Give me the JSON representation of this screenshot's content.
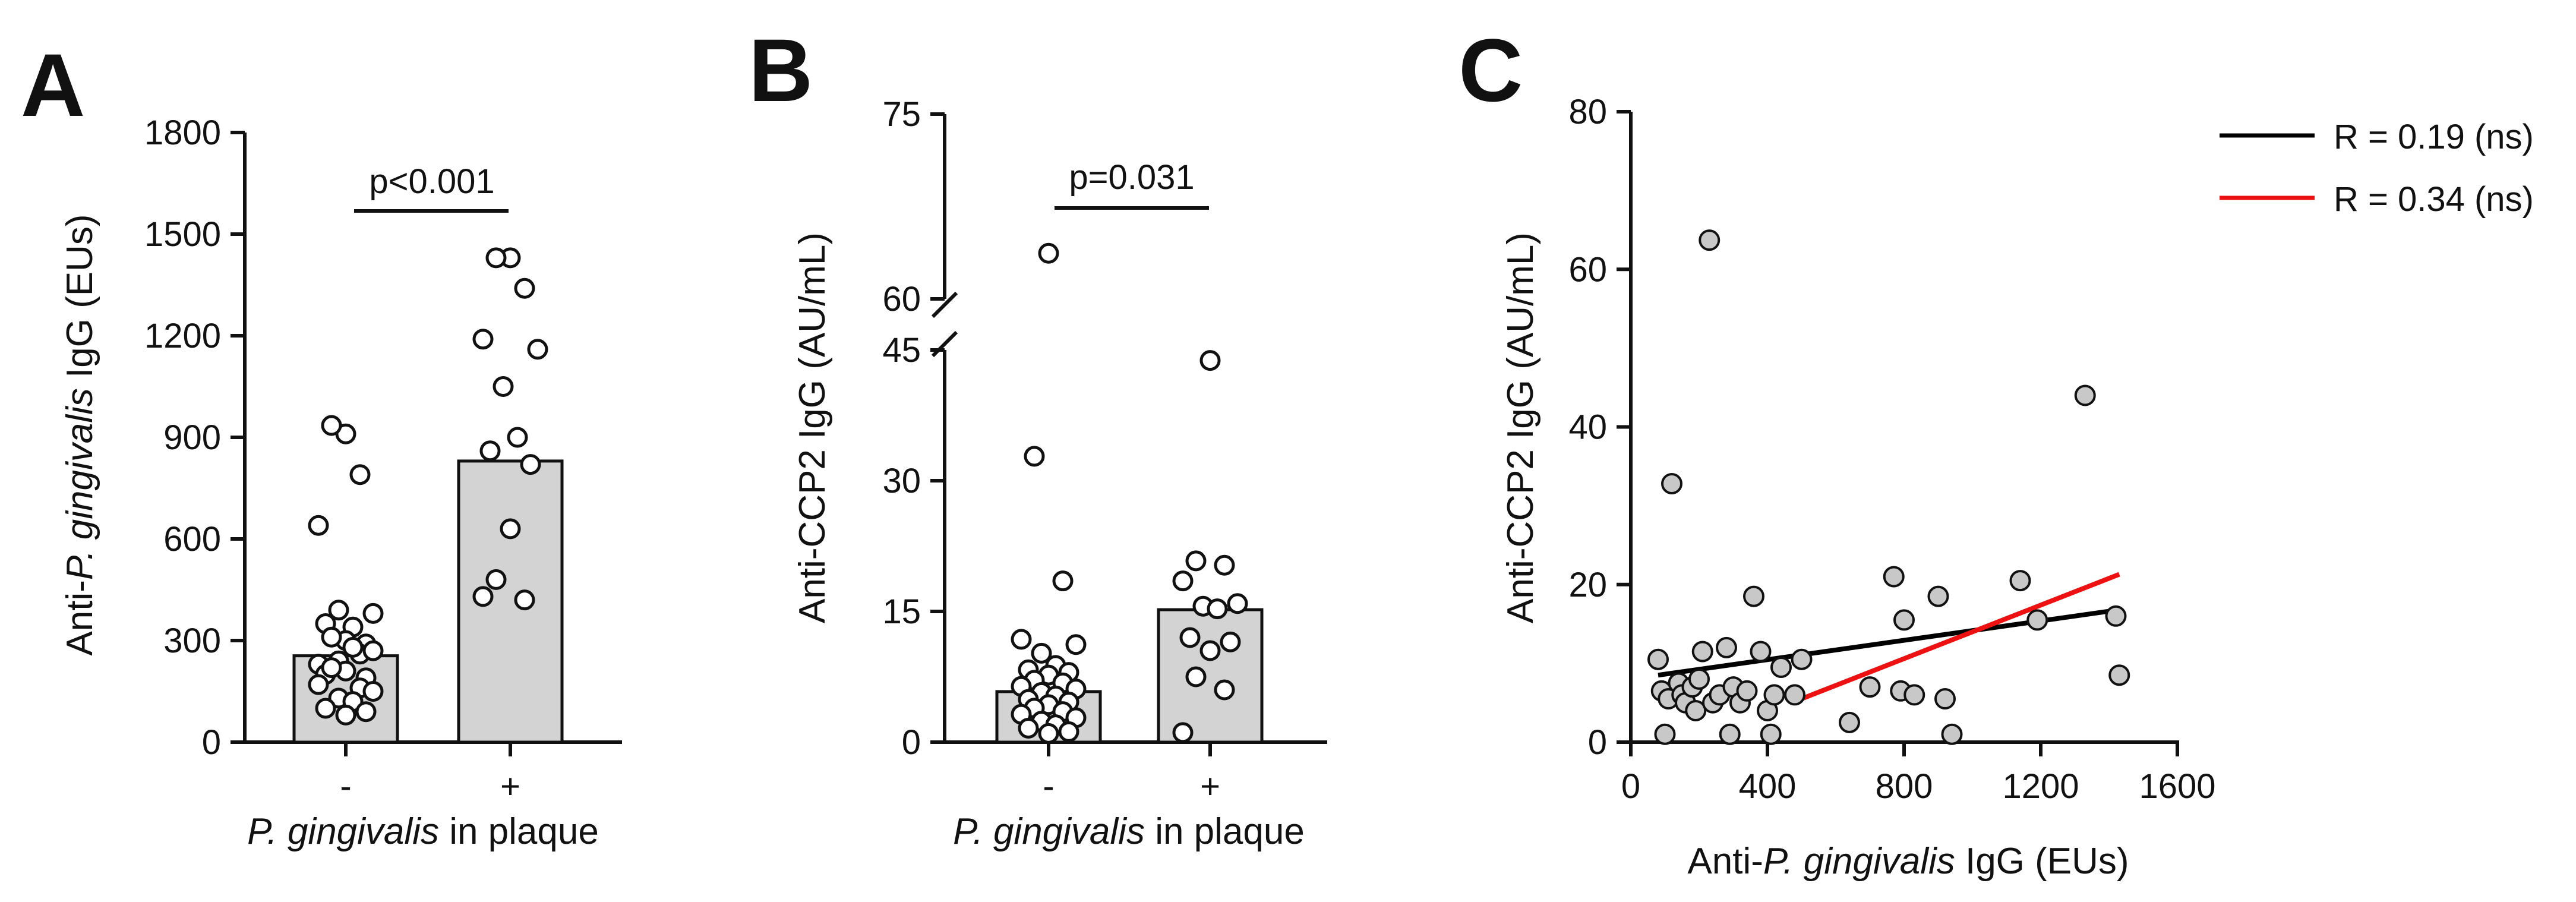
{
  "chart_data": [
    {
      "panel": "A",
      "type": "bar",
      "title": "",
      "ylabel_parts": [
        "Anti-",
        "P. gingivalis",
        " IgG (EUs)"
      ],
      "xlabel_parts": [
        "P. gingivalis",
        " in plaque"
      ],
      "categories": [
        "-",
        "+"
      ],
      "ylim": [
        0,
        1800
      ],
      "yticks": [
        0,
        300,
        600,
        900,
        1200,
        1500,
        1800
      ],
      "bars": [
        255,
        830
      ],
      "points": [
        [
          910,
          935,
          790,
          640,
          380,
          390,
          340,
          350,
          290,
          300,
          310,
          260,
          230,
          270,
          240,
          280,
          200,
          190,
          210,
          220,
          160,
          170,
          150,
          130,
          120,
          100,
          90,
          80
        ],
        [
          1430,
          1430,
          1340,
          1190,
          1160,
          1050,
          900,
          860,
          820,
          630,
          480,
          420,
          430
        ]
      ],
      "annotation": "p<0.001",
      "bar_color": "#d3d3d3"
    },
    {
      "panel": "B",
      "type": "bar",
      "title": "",
      "ylabel": "Anti-CCP2 IgG (AU/mL)",
      "xlabel_parts": [
        "P. gingivalis",
        " in plaque"
      ],
      "categories": [
        "-",
        "+"
      ],
      "axis_break": [
        45,
        60
      ],
      "yticks": [
        0,
        15,
        30,
        45,
        60,
        75
      ],
      "bars": [
        5.8,
        15.2
      ],
      "points": [
        [
          63.7,
          32.8,
          18.5,
          11.8,
          11.2,
          10.2,
          8.8,
          8.3,
          8.0,
          7.7,
          7.1,
          6.8,
          6.4,
          6.1,
          5.7,
          5.3,
          4.9,
          4.6,
          4.3,
          3.9,
          3.5,
          3.2,
          2.8,
          2.4,
          2.0,
          1.6,
          1.2,
          1.0
        ],
        [
          43.8,
          20.8,
          20.3,
          18.5,
          15.9,
          15.6,
          15.3,
          12.0,
          11.5,
          10.5,
          7.5,
          6.0,
          1.1
        ]
      ],
      "annotation": "p=0.031",
      "bar_color": "#d3d3d3"
    },
    {
      "panel": "C",
      "type": "scatter",
      "title": "",
      "xlabel_parts": [
        "Anti-",
        "P. gingivalis",
        " IgG (EUs)"
      ],
      "ylabel": "Anti-CCP2 IgG (AU/mL)",
      "xlim": [
        0,
        1600
      ],
      "ylim": [
        0,
        80
      ],
      "xticks": [
        0,
        400,
        800,
        1200,
        1600
      ],
      "yticks": [
        0,
        20,
        40,
        60,
        80
      ],
      "x": [
        80,
        90,
        100,
        110,
        120,
        140,
        150,
        160,
        180,
        190,
        200,
        210,
        230,
        240,
        260,
        280,
        290,
        300,
        320,
        340,
        360,
        380,
        400,
        410,
        420,
        440,
        480,
        500,
        640,
        700,
        770,
        790,
        800,
        830,
        900,
        920,
        940,
        1140,
        1190,
        1330,
        1420,
        1430
      ],
      "y": [
        10.5,
        6.5,
        1.0,
        5.5,
        32.8,
        7.5,
        6.0,
        5.0,
        7.0,
        4.0,
        8.0,
        11.5,
        63.7,
        5.0,
        6.0,
        12.0,
        1.0,
        7.0,
        5.0,
        6.5,
        18.5,
        11.5,
        4.0,
        1.0,
        6.0,
        9.5,
        6.0,
        10.5,
        2.5,
        7.0,
        21.0,
        6.5,
        15.5,
        6.0,
        18.5,
        5.5,
        1.0,
        20.5,
        15.5,
        44.0,
        16.0,
        8.5
      ],
      "fit_lines": [
        {
          "name": "R = 0.19 (ns)",
          "color": "#000000",
          "x": [
            80,
            1430
          ],
          "y": [
            8.5,
            16.8
          ]
        },
        {
          "name": "R = 0.34 (ns)",
          "color": "#ee1111",
          "x": [
            500,
            1430
          ],
          "y": [
            5.5,
            21.3
          ]
        }
      ],
      "legend_position": "top-right",
      "point_color": "#c8c8c8"
    }
  ]
}
